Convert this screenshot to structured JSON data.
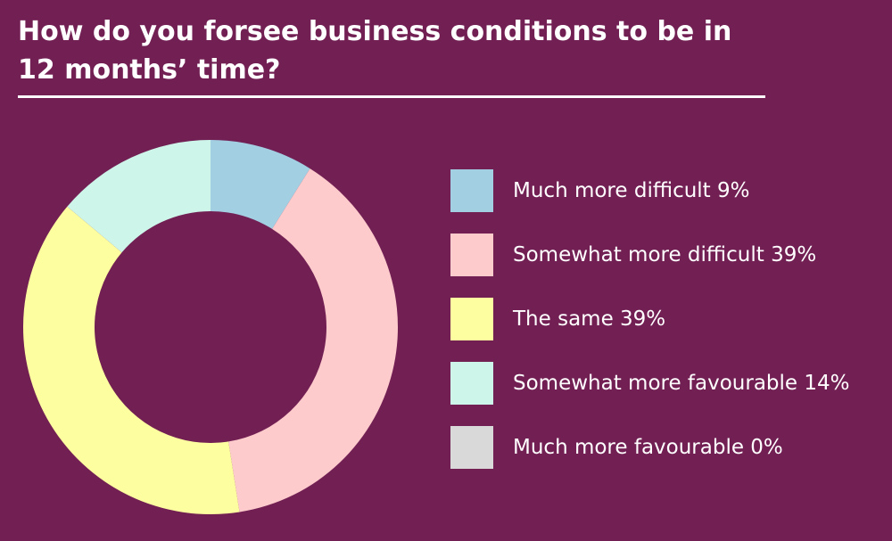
{
  "title": "How do you forsee business conditions to be in 12 months’ time?",
  "chart_data": {
    "type": "pie",
    "donut": true,
    "title": "How do you forsee business conditions to be in 12 months’ time?",
    "legend_position": "right",
    "slices": [
      {
        "label": "Much more difficult 9%",
        "name": "Much more difficult",
        "value": 9,
        "color": "#a3cfe3"
      },
      {
        "label": "Somewhat more difficult 39%",
        "name": "Somewhat more difficult",
        "value": 39,
        "color": "#fdcbcb"
      },
      {
        "label": "The same 39%",
        "name": "The same",
        "value": 39,
        "color": "#fdfe9f"
      },
      {
        "label": "Somewhat more favourable 14%",
        "name": "Somewhat more favourable",
        "value": 14,
        "color": "#cdf5e9"
      },
      {
        "label": "Much more favourable 0%",
        "name": "Much more favourable",
        "value": 0,
        "color": "#d9d9d9"
      }
    ]
  }
}
